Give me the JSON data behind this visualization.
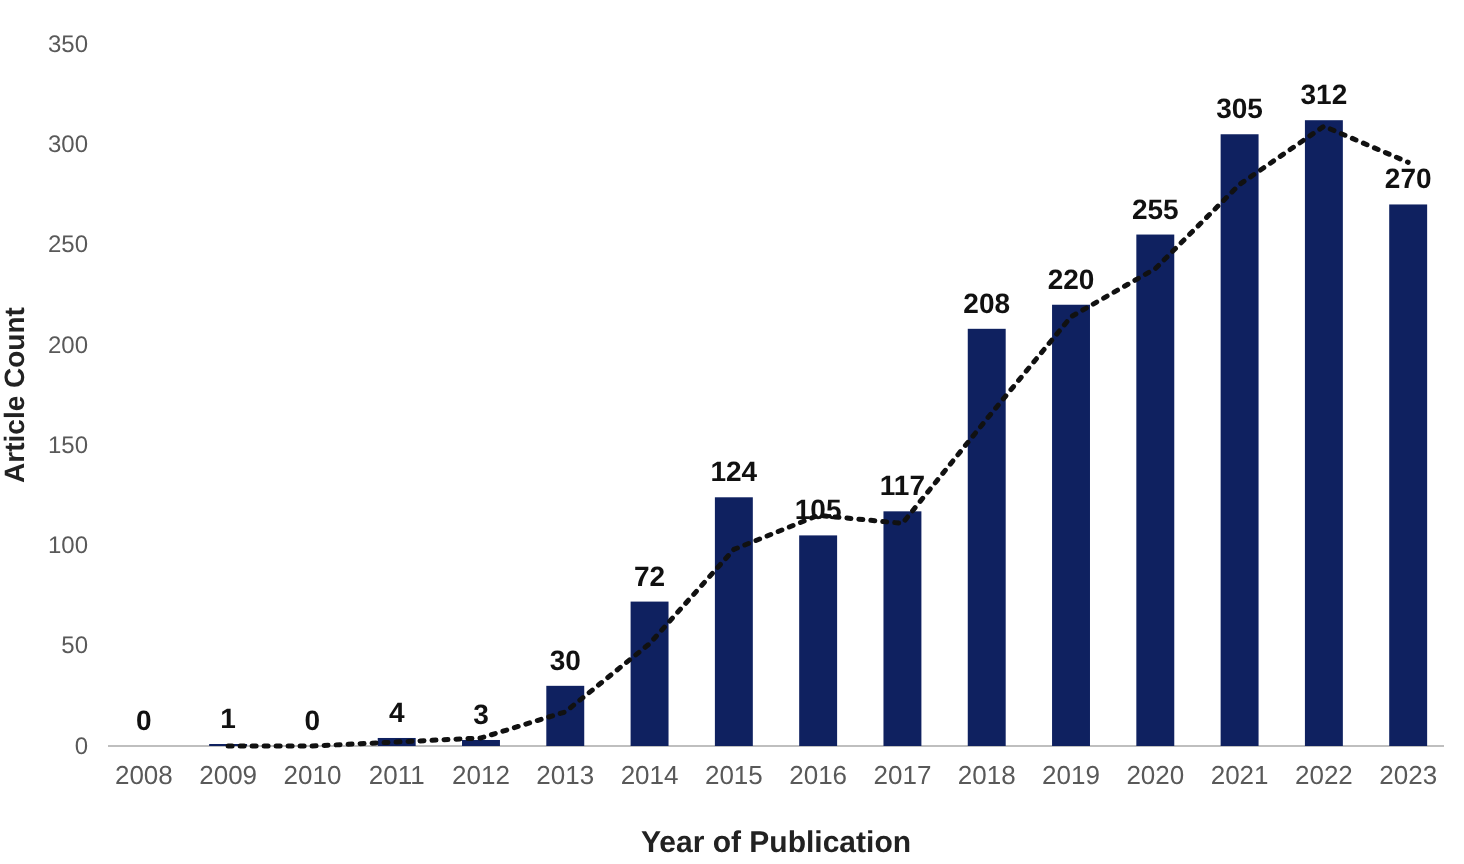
{
  "chart_data": {
    "type": "bar",
    "xlabel": "Year of Publication",
    "ylabel": "Article Count",
    "categories": [
      "2008",
      "2009",
      "2010",
      "2011",
      "2012",
      "2013",
      "2014",
      "2015",
      "2016",
      "2017",
      "2018",
      "2019",
      "2020",
      "2021",
      "2022",
      "2023"
    ],
    "series": [
      {
        "color": "#0f2160",
        "values": [
          0,
          1,
          0,
          4,
          3,
          30,
          72,
          124,
          105,
          117,
          208,
          220,
          255,
          305,
          312,
          270
        ],
        "value_labels": [
          "0",
          "1",
          "0",
          "4",
          "3",
          "30",
          "72",
          "124",
          "105",
          "117",
          "208",
          "220",
          "255",
          "305",
          "312",
          "270"
        ]
      },
      {
        "type": "line",
        "color": "#111111",
        "line_style": "dotted",
        "marker": "none",
        "values": [
          null,
          0,
          0,
          2,
          4,
          17,
          51,
          98,
          115,
          111,
          163,
          214,
          238,
          280,
          309,
          291
        ]
      }
    ],
    "ylim": [
      0,
      350
    ],
    "yticks": [
      0,
      50,
      100,
      150,
      200,
      250,
      300,
      350
    ],
    "grid": false
  }
}
